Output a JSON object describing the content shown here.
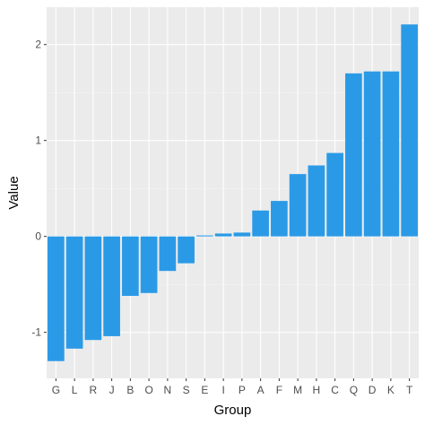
{
  "chart_data": {
    "type": "bar",
    "title": "",
    "xlabel": "Group",
    "ylabel": "Value",
    "categories": [
      "G",
      "L",
      "R",
      "J",
      "B",
      "O",
      "N",
      "S",
      "E",
      "I",
      "P",
      "A",
      "F",
      "M",
      "H",
      "C",
      "Q",
      "D",
      "K",
      "T"
    ],
    "values": [
      -1.3,
      -1.17,
      -1.08,
      -1.04,
      -0.62,
      -0.59,
      -0.36,
      -0.28,
      0.01,
      0.03,
      0.04,
      0.27,
      0.37,
      0.65,
      0.74,
      0.87,
      1.7,
      1.72,
      1.72,
      2.21
    ],
    "ylim": [
      -1.48,
      2.39
    ],
    "yticks": [
      -1,
      0,
      1,
      2
    ],
    "grid": true,
    "colors": {
      "bar": "#2b9ae6",
      "panel": "#ebebeb",
      "grid_major": "#ffffff",
      "grid_minor": "#f4f4f4"
    }
  }
}
